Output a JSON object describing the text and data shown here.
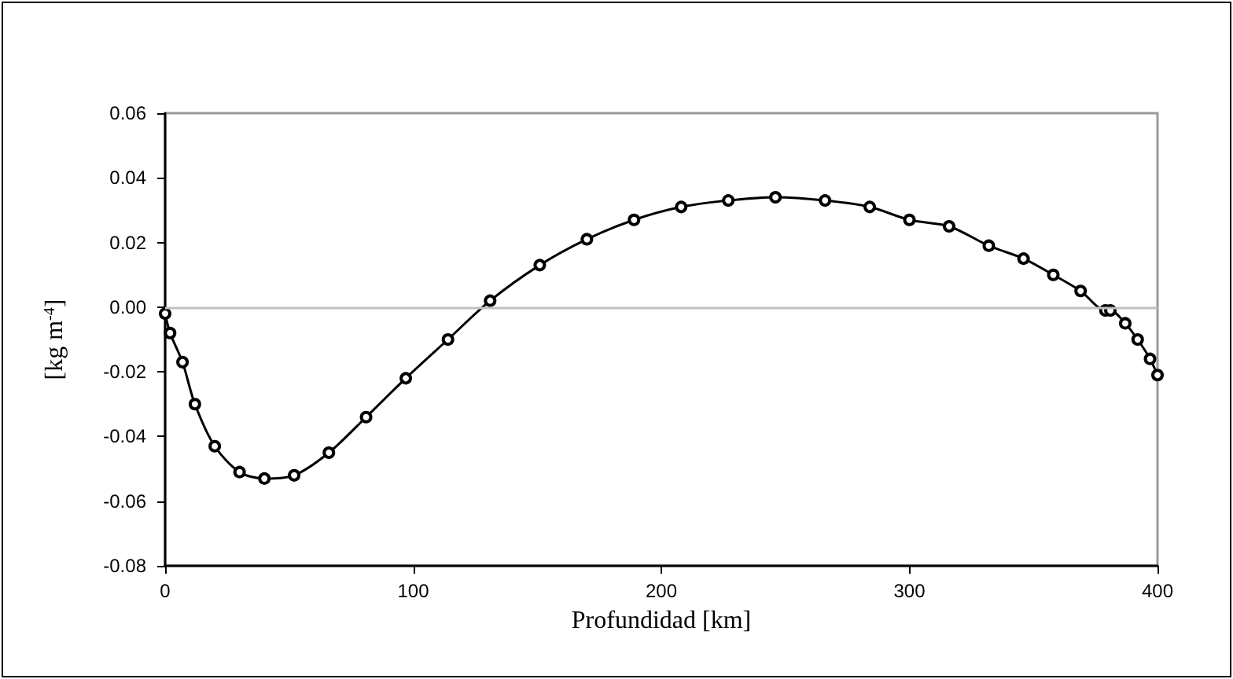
{
  "chart_data": {
    "type": "line",
    "xlabel": "Profundidad [km]",
    "ylabel": "[kg m$^{-4}$]",
    "xlim": [
      0,
      400
    ],
    "xticks": [
      0,
      100,
      200,
      300,
      400
    ],
    "ylim": [
      -0.08,
      0.06
    ],
    "yticks": [
      -0.08,
      -0.06,
      -0.04,
      -0.02,
      {
        "value": 0,
        "label": "0.00"
      },
      0.02,
      0.04,
      0.06
    ],
    "grid": false,
    "marker": "circle",
    "line_style": "solid",
    "ref_lines": [
      {
        "axis": "y",
        "value": 0,
        "color": "#c0c0c0"
      }
    ],
    "series": [
      {
        "color": "#000000",
        "x": [
          0,
          2,
          7,
          12,
          20,
          30,
          40,
          52,
          66,
          81,
          97,
          114,
          131,
          151,
          170,
          189,
          208,
          227,
          246,
          266,
          284,
          300,
          316,
          332,
          346,
          358,
          369,
          379,
          381,
          387,
          392,
          397,
          400
        ],
        "values": [
          -0.002,
          -0.008,
          -0.017,
          -0.03,
          -0.043,
          -0.051,
          -0.053,
          -0.052,
          -0.045,
          -0.034,
          -0.022,
          -0.01,
          0.002,
          0.013,
          0.021,
          0.027,
          0.031,
          0.033,
          0.034,
          0.033,
          0.031,
          0.027,
          0.025,
          0.019,
          0.015,
          0.01,
          0.005,
          -0.001,
          -0.001,
          -0.005,
          -0.01,
          -0.016,
          -0.021
        ]
      }
    ]
  }
}
